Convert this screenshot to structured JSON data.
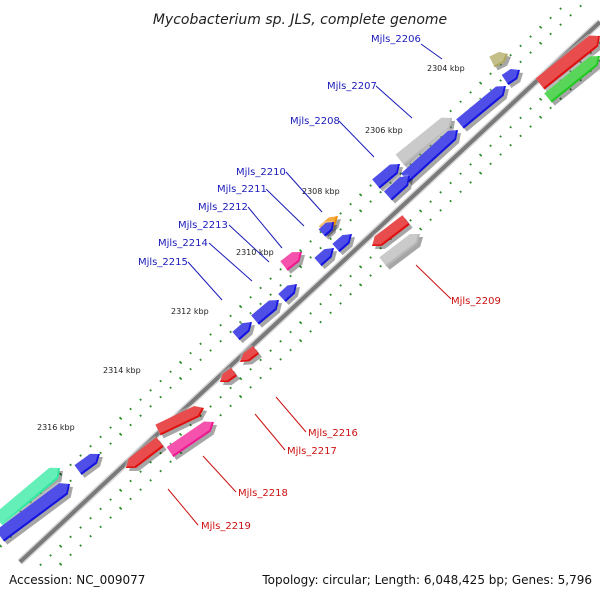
{
  "title": "Mycobacterium sp. JLS, complete genome",
  "footer": {
    "accession": "Accession: NC_009077",
    "summary": "Topology: circular; Length: 6,048,425 bp; Genes: 5,796"
  },
  "ticks": [
    "2304 kbp",
    "2306 kbp",
    "2308 kbp",
    "2310 kbp",
    "2312 kbp",
    "2314 kbp",
    "2316 kbp"
  ],
  "genes_upper": [
    "Mjls_2206",
    "Mjls_2207",
    "Mjls_2208",
    "Mjls_2210",
    "Mjls_2211",
    "Mjls_2212",
    "Mjls_2213",
    "Mjls_2214",
    "Mjls_2215"
  ],
  "genes_lower": [
    "Mjls_2209",
    "Mjls_2216",
    "Mjls_2217",
    "Mjls_2218",
    "Mjls_2219"
  ],
  "colors": {
    "backbone": "#7a7a7a",
    "forward_label": "#1a1ab8",
    "reverse_label": "#cc1111",
    "cds_blue": "#1414e0",
    "cds_red": "#e01010",
    "cds_gray": "#b8b8b8",
    "cds_pink": "#f01890",
    "cds_green": "#22c822",
    "cds_teal": "#30e8a0",
    "cds_orange": "#f08c00",
    "cds_khaki": "#b0a860",
    "tick_green": "#2a8a2a"
  }
}
